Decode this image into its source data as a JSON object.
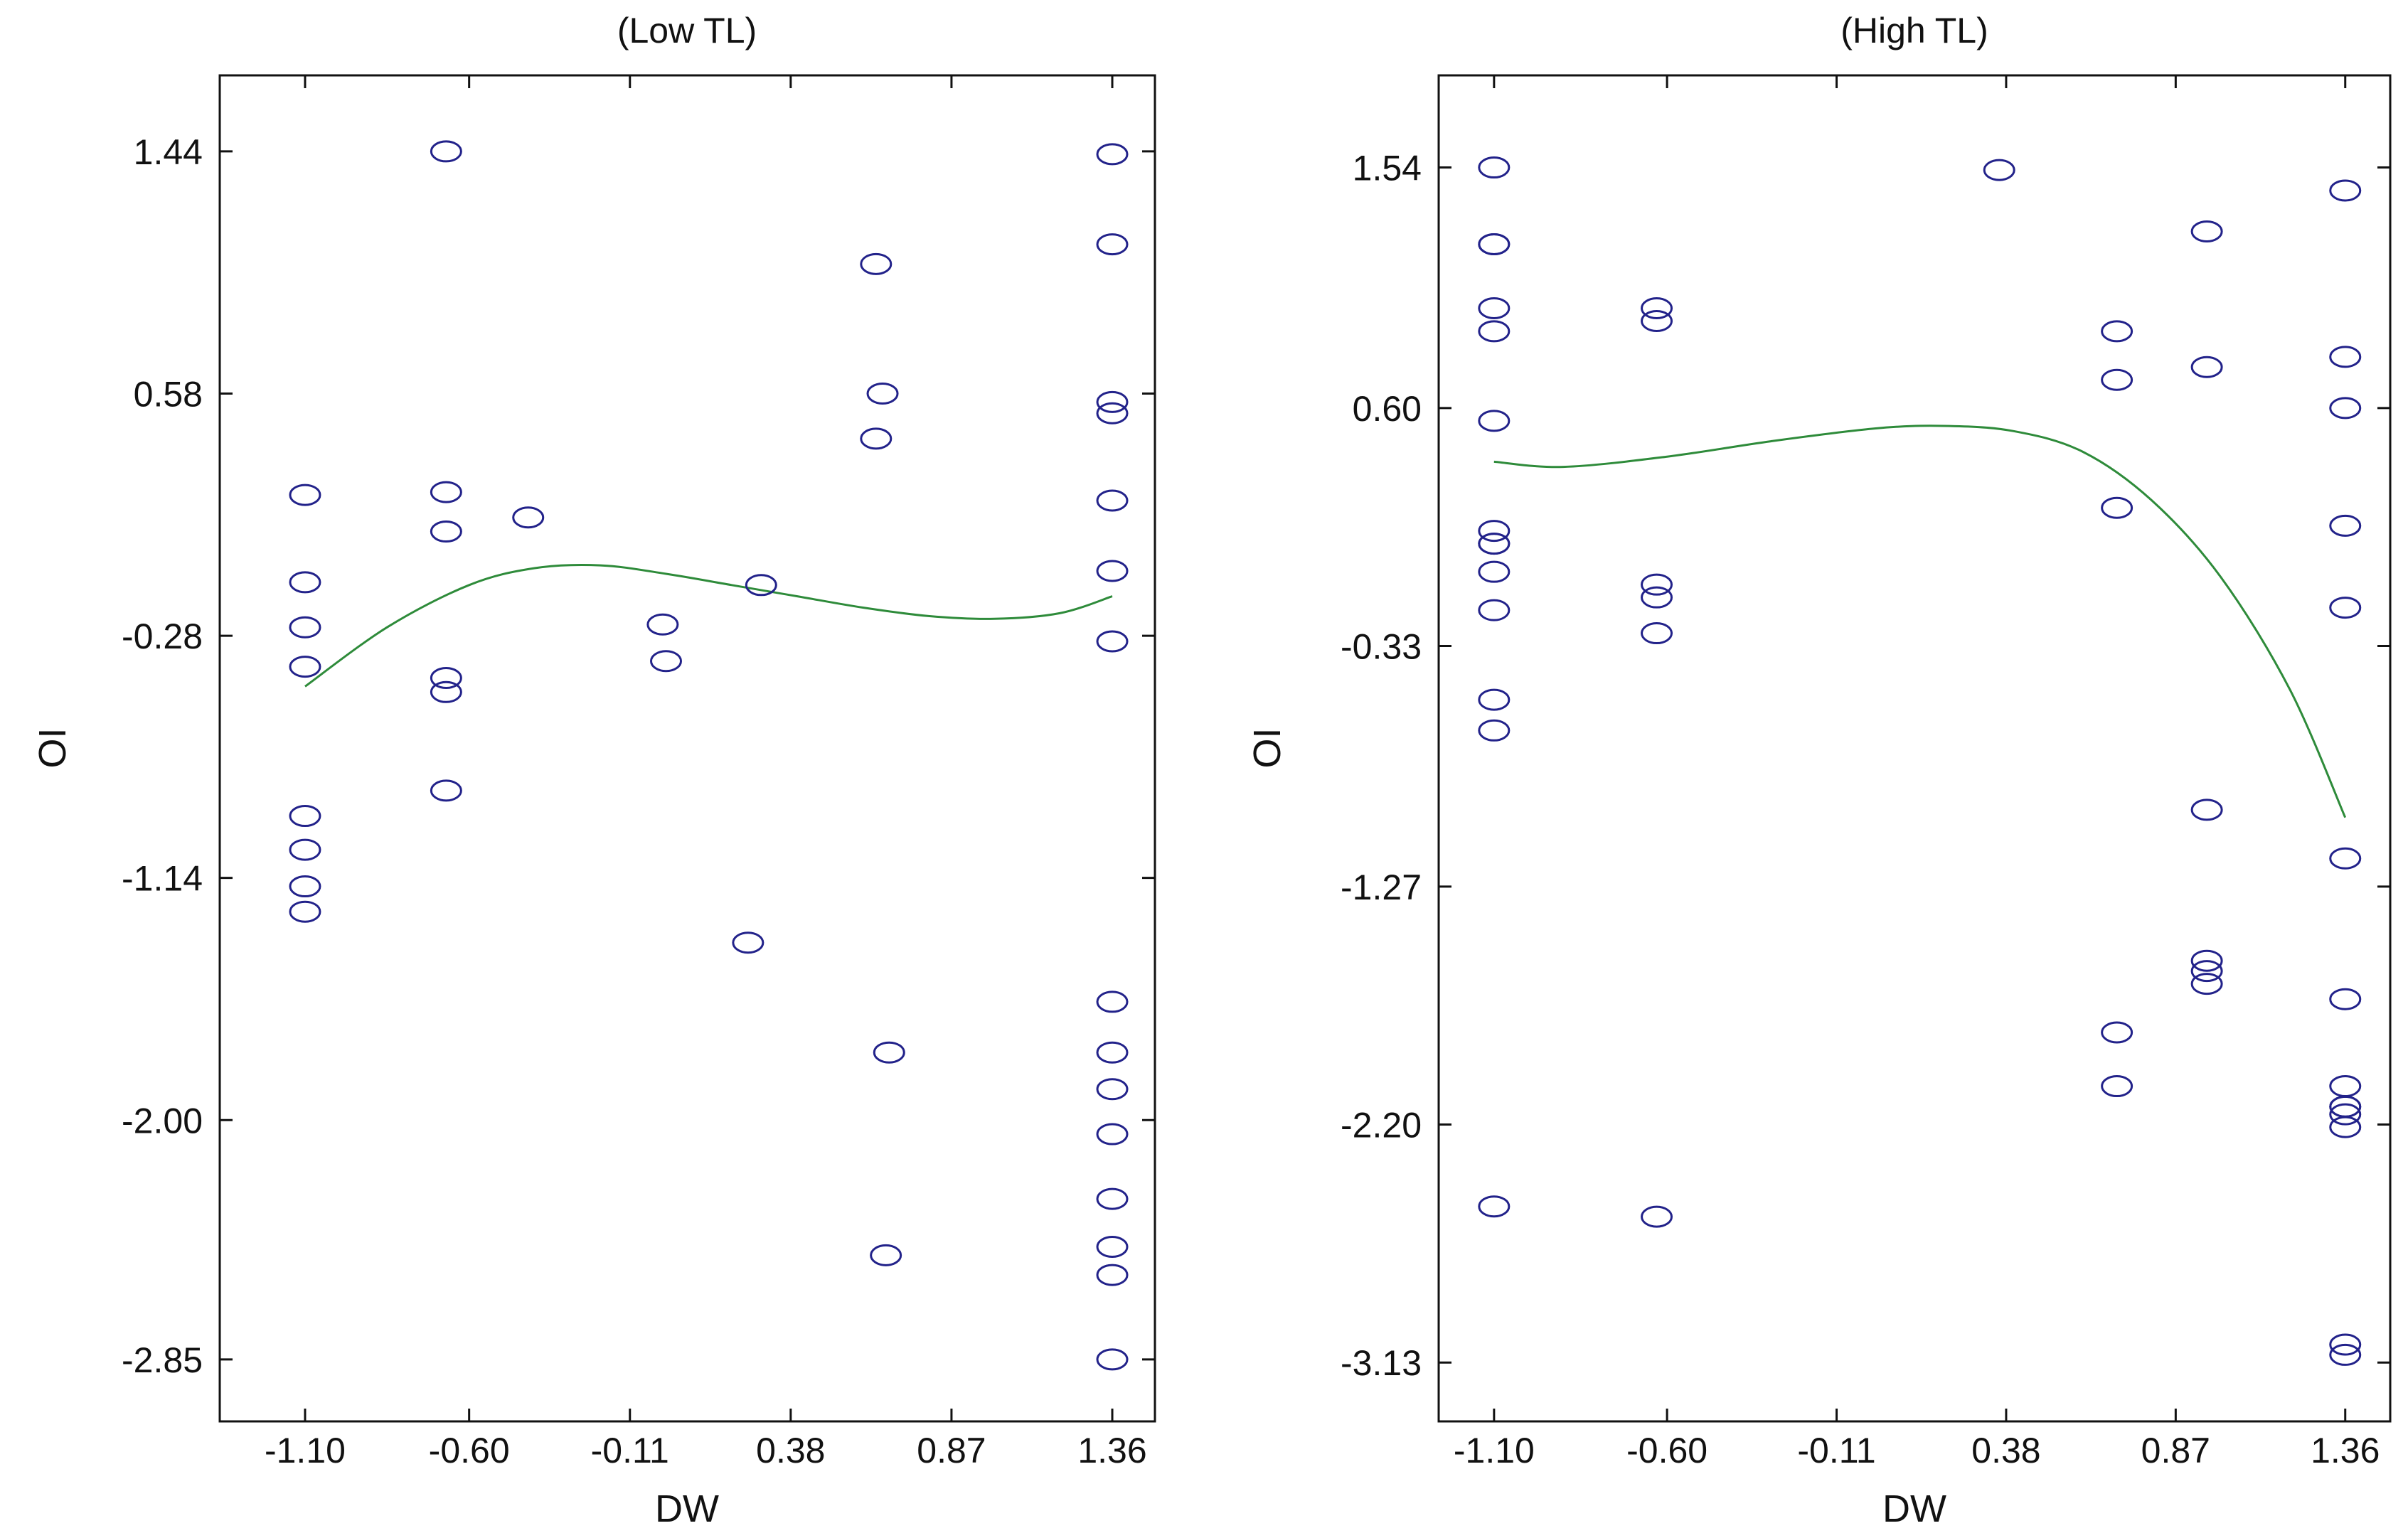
{
  "colors": {
    "background": "#ffffff",
    "axis": "#111111",
    "marker": "#22228a",
    "curve": "#2e8b3a"
  },
  "chart_data": [
    {
      "type": "scatter",
      "title": "(Low TL)",
      "xlabel": "DW",
      "ylabel": "OI",
      "xlim": [
        -1.36,
        1.49
      ],
      "ylim": [
        -3.07,
        1.71
      ],
      "xticks": [
        -1.1,
        -0.6,
        -0.11,
        0.38,
        0.87,
        1.36
      ],
      "xtick_labels": [
        "-1.10",
        "-0.60",
        "-0.11",
        "0.38",
        "0.87",
        "1.36"
      ],
      "yticks": [
        1.44,
        0.58,
        -0.28,
        -1.14,
        -2.0,
        -2.85
      ],
      "ytick_labels": [
        "1.44",
        "0.58",
        "-0.28",
        "-1.14",
        "-2.00",
        "-2.85"
      ],
      "grid": false,
      "series": [
        {
          "kind": "points",
          "marker": "circle",
          "x": [
            -1.1,
            -1.1,
            -1.1,
            -1.1,
            -1.1,
            -1.1,
            -1.1,
            -1.1,
            -0.67,
            -0.67,
            -0.67,
            -0.67,
            -0.67,
            -0.67,
            -0.42,
            -0.01,
            0.0,
            0.25,
            0.29,
            0.64,
            0.66,
            0.68,
            0.67,
            0.64,
            1.36,
            1.36,
            1.36,
            1.36,
            1.36,
            1.36,
            1.36,
            1.36,
            1.36,
            1.36,
            1.36,
            1.36,
            1.36,
            1.36,
            1.36
          ],
          "y": [
            0.22,
            -0.09,
            -0.25,
            -0.39,
            -0.92,
            -1.04,
            -1.17,
            -1.26,
            1.44,
            0.23,
            0.09,
            -0.43,
            -0.48,
            -0.83,
            0.14,
            -0.24,
            -0.37,
            -1.37,
            -0.1,
            1.04,
            0.58,
            -1.76,
            -2.48,
            0.42,
            1.43,
            1.11,
            0.55,
            0.51,
            0.2,
            -0.05,
            -0.3,
            -1.58,
            -1.76,
            -1.89,
            -2.05,
            -2.28,
            -2.45,
            -2.55,
            -2.85
          ]
        },
        {
          "kind": "fit-curve",
          "x": [
            -1.1,
            -0.85,
            -0.6,
            -0.4,
            -0.2,
            0.0,
            0.2,
            0.4,
            0.6,
            0.8,
            1.0,
            1.2,
            1.36
          ],
          "y": [
            -0.46,
            -0.25,
            -0.1,
            -0.04,
            -0.03,
            -0.06,
            -0.1,
            -0.14,
            -0.18,
            -0.21,
            -0.22,
            -0.2,
            -0.14
          ]
        }
      ]
    },
    {
      "type": "scatter",
      "title": "(High TL)",
      "xlabel": "DW",
      "ylabel": "OI",
      "xlim": [
        -1.26,
        1.49
      ],
      "ylim": [
        -3.36,
        1.9
      ],
      "xticks": [
        -1.1,
        -0.6,
        -0.11,
        0.38,
        0.87,
        1.36
      ],
      "xtick_labels": [
        "-1.10",
        "-0.60",
        "-0.11",
        "0.38",
        "0.87",
        "1.36"
      ],
      "yticks": [
        1.54,
        0.6,
        -0.33,
        -1.27,
        -2.2,
        -3.13
      ],
      "ytick_labels": [
        "1.54",
        "0.60",
        "-0.33",
        "-1.27",
        "-2.20",
        "-3.13"
      ],
      "grid": false,
      "series": [
        {
          "kind": "points",
          "marker": "circle",
          "x": [
            -1.1,
            -1.1,
            -1.1,
            -1.1,
            -1.1,
            -1.1,
            -1.1,
            -1.1,
            -1.1,
            -1.1,
            -1.1,
            -1.1,
            -1.1,
            -1.1,
            -0.63,
            -0.63,
            -0.63,
            -0.63,
            -0.63,
            -0.63,
            0.36,
            0.7,
            0.7,
            0.7,
            0.7,
            0.7,
            0.96,
            0.96,
            0.96,
            0.96,
            0.96,
            0.96,
            1.36,
            1.36,
            1.36,
            1.36,
            1.36,
            1.36,
            1.36,
            1.36,
            1.36,
            1.36,
            1.36,
            1.36,
            1.36,
            1.36
          ],
          "y": [
            1.54,
            1.24,
            1.24,
            0.99,
            0.9,
            0.55,
            0.12,
            0.07,
            -0.04,
            -0.19,
            -0.54,
            -0.66,
            -2.52,
            0.07,
            0.99,
            0.94,
            -0.09,
            -0.14,
            -0.28,
            -2.56,
            1.53,
            0.9,
            0.71,
            0.21,
            -1.84,
            -2.05,
            1.29,
            0.76,
            -0.97,
            -1.56,
            -1.6,
            -1.65,
            1.45,
            0.8,
            0.6,
            0.14,
            -0.18,
            -1.16,
            -1.71,
            -2.05,
            -2.13,
            -2.16,
            -2.21,
            -3.06,
            -3.1,
            -2.13
          ],
          "note_dropped": false
        },
        {
          "kind": "fit-curve",
          "x": [
            -1.1,
            -0.9,
            -0.6,
            -0.3,
            0.0,
            0.2,
            0.4,
            0.6,
            0.8,
            1.0,
            1.2,
            1.36
          ],
          "y": [
            0.39,
            0.37,
            0.41,
            0.47,
            0.52,
            0.53,
            0.51,
            0.43,
            0.24,
            -0.06,
            -0.5,
            -1.0
          ]
        }
      ]
    }
  ]
}
